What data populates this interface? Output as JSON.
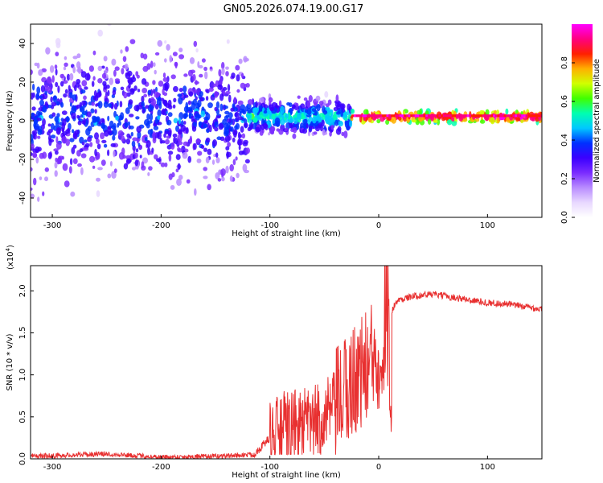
{
  "title": "GN05.2026.074.19.00.G17",
  "chart_data": [
    {
      "type": "heatmap",
      "xlabel": "Height of straight line (km)",
      "ylabel": "Frequency (Hz)",
      "xlim": [
        -320,
        150
      ],
      "ylim": [
        -50,
        50
      ],
      "xticks": [
        -300,
        -200,
        -100,
        0,
        100
      ],
      "yticks": [
        -40,
        -20,
        0,
        20,
        40
      ],
      "band_center_hz": 2,
      "colorbar": {
        "label": "Normalized spectral amplitude",
        "range": [
          0,
          1
        ],
        "ticks": [
          "0.0",
          "0.2",
          "0.4",
          "0.6",
          "0.8"
        ],
        "colormap": [
          "#ffffff",
          "#e8d8ff",
          "#b98cff",
          "#7a2cff",
          "#3b00ff",
          "#0030ff",
          "#00c8ff",
          "#00ffb0",
          "#40ff00",
          "#d0ff00",
          "#ffb000",
          "#ff2000",
          "#ff0080",
          "#ff00ff"
        ]
      },
      "segments": [
        {
          "x": [
            -320,
            -120
          ],
          "spread_hz": 50,
          "core_amplitude": 0.3
        },
        {
          "x": [
            -120,
            -25
          ],
          "spread_hz": 12,
          "core_amplitude": 0.45
        },
        {
          "x": [
            -25,
            150
          ],
          "spread_hz": 4,
          "core_amplitude": 0.9
        }
      ]
    },
    {
      "type": "line",
      "xlabel": "Height of straight line (km)",
      "ylabel": "SNR (10 * v/v)",
      "multiplier_label": "(x10",
      "multiplier_exp": "4",
      "xlim": [
        -320,
        150
      ],
      "ylim": [
        0,
        2.3
      ],
      "xticks": [
        -300,
        -200,
        -100,
        0,
        100
      ],
      "yticks": [
        "0.0",
        "0.5",
        "1.0",
        "1.5",
        "2.0"
      ],
      "color": "#e83030",
      "series": [
        {
          "x": [
            -320,
            -250,
            -200,
            -150,
            -115,
            -100,
            -90,
            -80,
            -70,
            -60,
            -50,
            -40,
            -30,
            -20,
            -10,
            -5,
            0,
            5,
            8,
            10,
            12,
            15,
            20,
            30,
            40,
            50,
            60,
            70,
            80,
            90,
            100,
            110,
            120,
            130,
            140,
            150
          ],
          "y": [
            0.03,
            0.06,
            0.02,
            0.03,
            0.05,
            0.25,
            0.35,
            0.38,
            0.4,
            0.42,
            0.5,
            0.6,
            0.8,
            1.0,
            1.1,
            1.2,
            1.25,
            1.4,
            1.5,
            1.6,
            1.75,
            1.85,
            1.9,
            1.93,
            1.95,
            1.96,
            1.94,
            1.92,
            1.9,
            1.88,
            1.86,
            1.85,
            1.84,
            1.82,
            1.8,
            1.78
          ]
        }
      ],
      "noise_amplitude": [
        {
          "x": [
            -320,
            -115
          ],
          "amp": 0.03
        },
        {
          "x": [
            -100,
            -40
          ],
          "amp": 0.45
        },
        {
          "x": [
            -40,
            12
          ],
          "amp": 0.7
        },
        {
          "x": [
            12,
            150
          ],
          "amp": 0.04
        }
      ]
    }
  ]
}
